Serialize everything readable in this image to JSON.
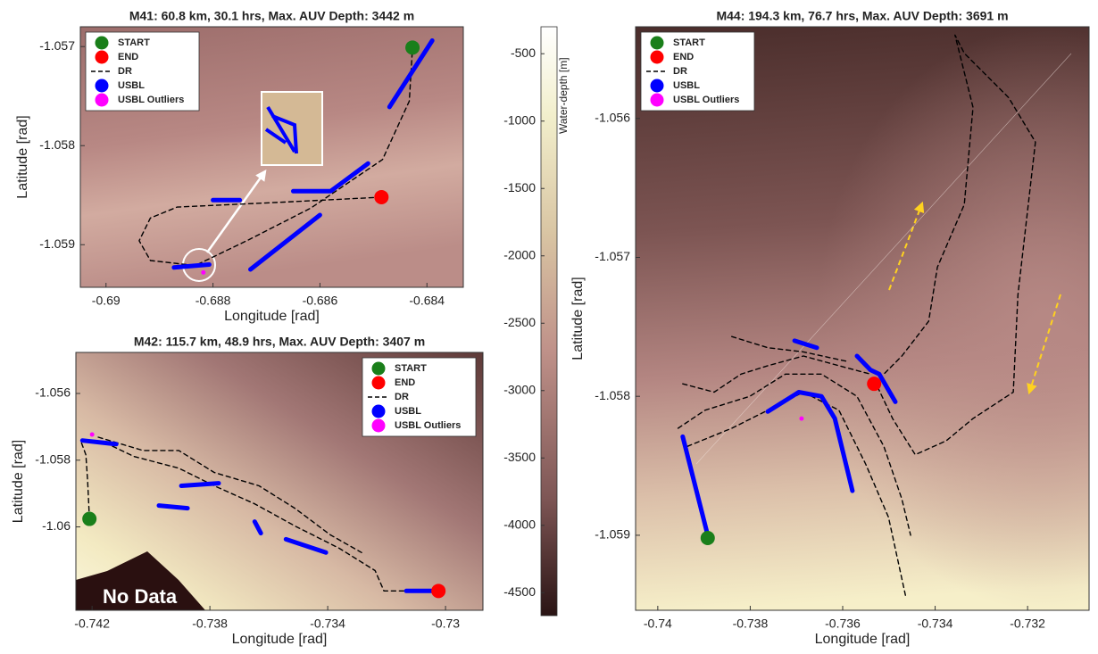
{
  "chart_data": [
    {
      "type": "map",
      "title": "M41: 60.8 km, 30.1 hrs, Max. AUV Depth: 3442 m",
      "xlabel": "Longitude [rad]",
      "ylabel": "Latitude [rad]",
      "xlim": [
        -0.69048,
        -0.68332
      ],
      "ylim": [
        -1.05943,
        -1.0568
      ],
      "xticks": [
        -0.69,
        -0.688,
        -0.686,
        -0.684
      ],
      "yticks": [
        -1.059,
        -1.058,
        -1.057
      ],
      "legend": "upper left",
      "series": [
        {
          "name": "START",
          "color": "#1a7f1a",
          "style": "point",
          "x": [
            -0.68427
          ],
          "y": [
            -1.05701
          ]
        },
        {
          "name": "END",
          "color": "#ff0000",
          "style": "point",
          "x": [
            -0.68485
          ],
          "y": [
            -1.05852
          ]
        },
        {
          "name": "DR",
          "color": "#000000",
          "style": "dashed",
          "x": [
            -0.68485,
            -0.68667,
            -0.68867,
            -0.68917,
            -0.68938,
            -0.68917,
            -0.68833,
            -0.68733,
            -0.68617,
            -0.68483,
            -0.68433,
            -0.68427
          ],
          "y": [
            -1.05852,
            -1.05857,
            -1.05862,
            -1.05873,
            -1.05896,
            -1.05916,
            -1.05921,
            -1.05895,
            -1.05863,
            -1.05814,
            -1.05755,
            -1.05701
          ]
        },
        {
          "name": "USBL",
          "color": "#0000ff",
          "style": "track",
          "x": [
            -0.6839,
            -0.6847,
            null,
            -0.6865,
            -0.6858,
            -0.6851,
            null,
            -0.688,
            -0.6875,
            null,
            -0.6873,
            -0.686,
            null,
            -0.68873,
            -0.68807
          ],
          "y": [
            -1.05694,
            -1.05761,
            null,
            -1.05846,
            -1.05846,
            -1.05818,
            null,
            -1.05855,
            -1.05855,
            null,
            -1.05925,
            -1.0587,
            null,
            -1.05923,
            -1.0592
          ]
        },
        {
          "name": "USBL Outliers",
          "color": "#ff00ff",
          "style": "dot",
          "x": [
            -0.68818
          ],
          "y": [
            -1.05928
          ]
        }
      ]
    },
    {
      "type": "map",
      "title": "M42: 115.7 km, 48.9 hrs, Max. AUV Depth: 3407 m",
      "xlabel": "Longitude [rad]",
      "ylabel": "Latitude [rad]",
      "xlim": [
        -0.74255,
        -0.72873
      ],
      "ylim": [
        -1.0625,
        -1.05477
      ],
      "xticks": [
        -0.742,
        -0.738,
        -0.734,
        -0.73
      ],
      "yticks": [
        -1.06,
        -1.058,
        -1.056
      ],
      "legend": "upper right",
      "annotation": "No Data",
      "series": [
        {
          "name": "START",
          "color": "#1a7f1a",
          "style": "point",
          "x": [
            -0.74209
          ],
          "y": [
            -1.05976
          ]
        },
        {
          "name": "END",
          "color": "#ff0000",
          "style": "point",
          "x": [
            -0.73024
          ],
          "y": [
            -1.06192
          ]
        },
        {
          "name": "DR",
          "color": "#000000",
          "style": "dashed",
          "x": [
            -0.74209,
            -0.74215,
            -0.74221,
            -0.74239,
            -0.74164,
            -0.74058,
            -0.73906,
            -0.73785,
            -0.73648,
            -0.73512,
            -0.73361,
            -0.73239,
            -0.73209,
            -0.73024,
            null,
            -0.74179,
            -0.74027,
            -0.73906,
            -0.73785,
            -0.73633,
            -0.73512,
            -0.73391,
            -0.73285
          ],
          "y": [
            -1.05976,
            -1.05864,
            -1.05784,
            -1.05741,
            -1.05744,
            -1.05789,
            -1.05824,
            -1.05877,
            -1.05931,
            -1.05997,
            -1.06064,
            -1.06131,
            -1.06192,
            -1.06192,
            null,
            -1.05731,
            -1.05771,
            -1.05771,
            -1.05837,
            -1.05877,
            -1.05944,
            -1.06024,
            -1.06077
          ]
        },
        {
          "name": "USBL",
          "color": "#0000ff",
          "style": "track",
          "x": [
            -0.74233,
            -0.74118,
            null,
            -0.73897,
            -0.7377,
            null,
            -0.73973,
            -0.73876,
            null,
            -0.73648,
            -0.73627,
            null,
            -0.73542,
            -0.73406,
            null,
            -0.73133,
            -0.73024
          ],
          "y": [
            -1.05741,
            -1.05752,
            null,
            -1.05877,
            -1.05869,
            null,
            -1.05936,
            -1.05944,
            null,
            -1.05984,
            -1.06019,
            null,
            -1.06037,
            -1.06077,
            null,
            -1.06192,
            -1.06192
          ]
        },
        {
          "name": "USBL Outliers",
          "color": "#ff00ff",
          "style": "dot",
          "x": [
            -0.742
          ],
          "y": [
            -1.05723
          ]
        }
      ]
    },
    {
      "type": "map",
      "title": "M44: 194.3 km, 76.7 hrs, Max. AUV Depth: 3691 m",
      "xlabel": "Longitude [rad]",
      "ylabel": "Latitude [rad]",
      "xlim": [
        -0.74048,
        -0.73067
      ],
      "ylim": [
        -1.05954,
        -1.05534
      ],
      "xticks": [
        -0.74,
        -0.738,
        -0.736,
        -0.734,
        -0.732
      ],
      "yticks": [
        -1.059,
        -1.058,
        -1.057,
        -1.056
      ],
      "legend": "upper left",
      "series": [
        {
          "name": "START",
          "color": "#1a7f1a",
          "style": "point",
          "x": [
            -0.73892
          ],
          "y": [
            -1.05902
          ]
        },
        {
          "name": "END",
          "color": "#ff0000",
          "style": "point",
          "x": [
            -0.73532
          ],
          "y": [
            -1.05791
          ]
        },
        {
          "name": "DR",
          "color": "#000000",
          "style": "dashed",
          "x": [
            -0.73532,
            -0.73492,
            -0.73443,
            -0.73376,
            -0.73318,
            -0.73231,
            -0.73221,
            -0.73183,
            -0.73241,
            -0.73337,
            -0.73357,
            -0.73318,
            -0.73337,
            -0.73395,
            -0.73414,
            -0.73472,
            -0.73511,
            null,
            -0.73956,
            -0.73898,
            -0.73801,
            -0.73724,
            -0.73646,
            -0.73569,
            -0.73511,
            -0.73472,
            -0.73453,
            null,
            -0.73936,
            -0.7384,
            -0.73762,
            -0.73685,
            -0.73608,
            -0.7355,
            -0.73501,
            -0.73463,
            null,
            -0.73946,
            -0.73878,
            -0.7382,
            -0.73762,
            -0.73685,
            -0.73608,
            -0.7354,
            null,
            -0.7384,
            -0.73762,
            -0.73685,
            -0.73588
          ],
          "y": [
            -1.05788,
            -1.05816,
            -1.05842,
            -1.05832,
            -1.05816,
            -1.05797,
            -1.05727,
            -1.05617,
            -1.05585,
            -1.05553,
            -1.0554,
            -1.05592,
            -1.05662,
            -1.05707,
            -1.05746,
            -1.05771,
            -1.05784,
            null,
            -1.05823,
            -1.0581,
            -1.058,
            -1.05784,
            -1.05784,
            -1.058,
            -1.05836,
            -1.05874,
            -1.059,
            null,
            -1.05836,
            -1.05823,
            -1.0581,
            -1.05797,
            -1.0581,
            -1.05849,
            -1.05887,
            -1.05945,
            null,
            -1.05791,
            -1.05797,
            -1.05784,
            -1.05778,
            -1.05771,
            -1.05778,
            -1.05784,
            null,
            -1.05757,
            -1.05765,
            -1.05768,
            -1.05775
          ]
        },
        {
          "name": "USBL",
          "color": "#0000ff",
          "style": "track",
          "x": [
            -0.73946,
            -0.73892,
            null,
            -0.73762,
            -0.73695,
            -0.73646,
            -0.73617,
            -0.73579,
            null,
            -0.73704,
            -0.73656,
            null,
            -0.73569,
            -0.7354,
            -0.73521,
            -0.73486
          ],
          "y": [
            -1.05829,
            -1.059,
            null,
            -1.05811,
            -1.05797,
            -1.058,
            -1.05816,
            -1.05868,
            null,
            -1.0576,
            -1.05765,
            null,
            -1.05771,
            -1.05781,
            -1.05784,
            -1.05804
          ]
        },
        {
          "name": "USBL Outliers",
          "color": "#ff00ff",
          "style": "dot",
          "x": [
            -0.73689
          ],
          "y": [
            -1.05816
          ]
        }
      ]
    },
    {
      "type": "colorbar",
      "label": "Water-depth [m]",
      "ylim": [
        -4670,
        -300
      ],
      "yticks": [
        -500,
        -1000,
        -1500,
        -2000,
        -2500,
        -3000,
        -3500,
        -4000,
        -4500
      ]
    }
  ]
}
